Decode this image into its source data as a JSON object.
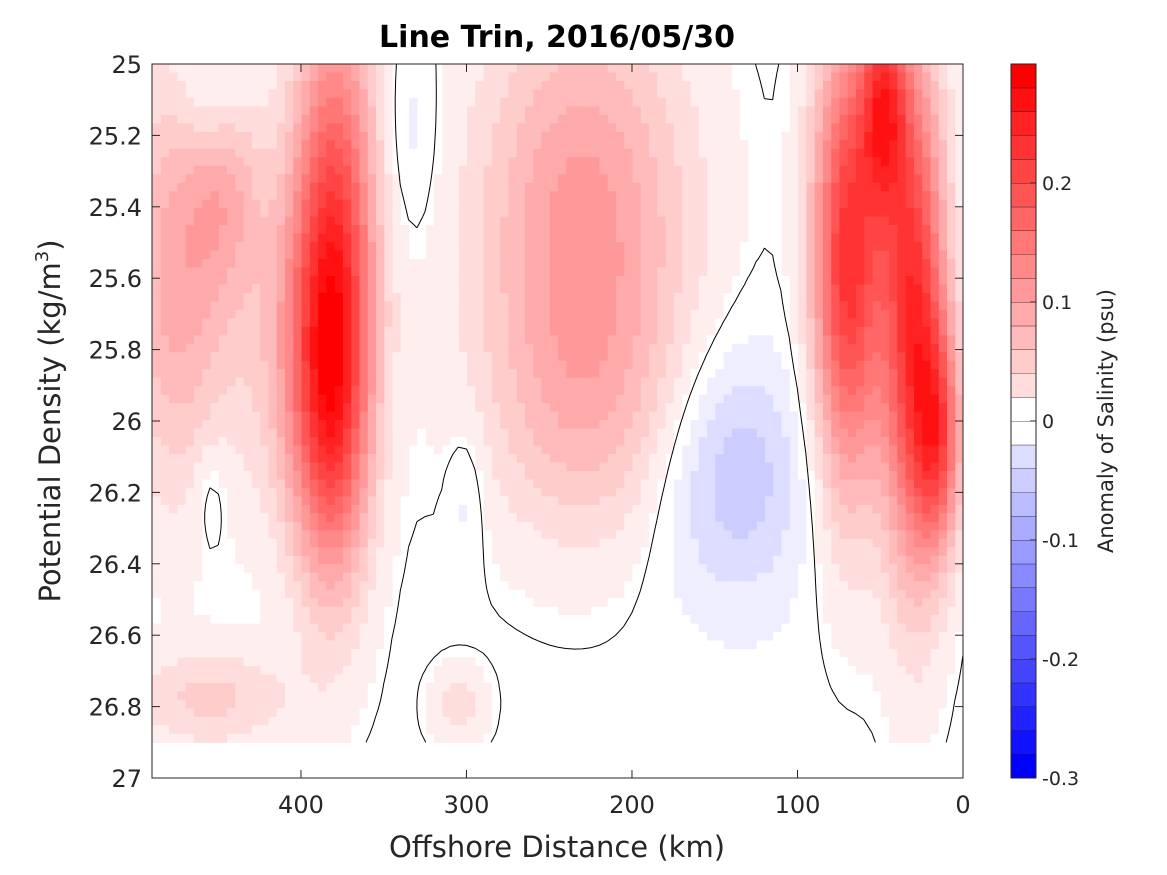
{
  "chart_data": {
    "type": "heatmap",
    "title": "Line Trin, 2016/05/30",
    "xlabel": "Offshore Distance (km)",
    "ylabel_prefix": "Potential Density (kg/m",
    "ylabel_superscript": "3",
    "ylabel_suffix": ")",
    "x_reversed": true,
    "y_reversed": true,
    "xlim": [
      0,
      490
    ],
    "ylim": [
      25,
      27
    ],
    "xticks": [
      400,
      300,
      200,
      100,
      0
    ],
    "yticks": [
      25,
      25.2,
      25.4,
      25.6,
      25.8,
      26,
      26.2,
      26.4,
      26.6,
      26.8,
      27
    ],
    "colorbar": {
      "label": "Anomaly of Salinity (psu)",
      "min": -0.3,
      "max": 0.3,
      "level_step": 0.02,
      "ticks": [
        0.2,
        0.1,
        0,
        -0.1,
        -0.2,
        -0.3
      ],
      "negative_color": "#0000ff",
      "positive_color": "#ff0000"
    },
    "blobs": [
      {
        "x": 475,
        "y": 25.6,
        "sx": 25,
        "sy": 0.42,
        "amp": 0.1
      },
      {
        "x": 445,
        "y": 25.35,
        "sx": 16,
        "sy": 0.22,
        "amp": 0.06
      },
      {
        "x": 380,
        "y": 25.5,
        "sx": 18,
        "sy": 0.5,
        "amp": 0.2
      },
      {
        "x": 382,
        "y": 26.0,
        "sx": 16,
        "sy": 0.35,
        "amp": 0.13
      },
      {
        "x": 405,
        "y": 25.8,
        "sx": 22,
        "sy": 0.35,
        "amp": 0.06
      },
      {
        "x": 230,
        "y": 25.45,
        "sx": 45,
        "sy": 0.45,
        "amp": 0.12
      },
      {
        "x": 225,
        "y": 26.0,
        "sx": 45,
        "sy": 0.25,
        "amp": 0.04
      },
      {
        "x": 70,
        "y": 25.55,
        "sx": 15,
        "sy": 0.45,
        "amp": 0.24
      },
      {
        "x": 30,
        "y": 25.7,
        "sx": 14,
        "sy": 0.5,
        "amp": 0.24
      },
      {
        "x": 48,
        "y": 25.1,
        "sx": 10,
        "sy": 0.22,
        "amp": 0.18
      },
      {
        "x": 15,
        "y": 26.05,
        "sx": 10,
        "sy": 0.22,
        "amp": 0.15
      },
      {
        "x": 140,
        "y": 26.15,
        "sx": 32,
        "sy": 0.25,
        "amp": -0.07
      },
      {
        "x": 455,
        "y": 25.1,
        "sx": 15,
        "sy": 0.12,
        "amp": -0.04
      },
      {
        "x": 335,
        "y": 25.2,
        "sx": 12,
        "sy": 0.2,
        "amp": -0.025
      },
      {
        "x": 455,
        "y": 26.2,
        "sx": 8,
        "sy": 0.12,
        "amp": -0.025
      },
      {
        "x": 300,
        "y": 26.2,
        "sx": 8,
        "sy": 0.15,
        "amp": -0.025
      },
      {
        "x": 455,
        "y": 26.78,
        "sx": 35,
        "sy": 0.1,
        "amp": 0.055
      },
      {
        "x": 305,
        "y": 26.8,
        "sx": 12,
        "sy": 0.08,
        "amp": 0.04
      }
    ]
  }
}
